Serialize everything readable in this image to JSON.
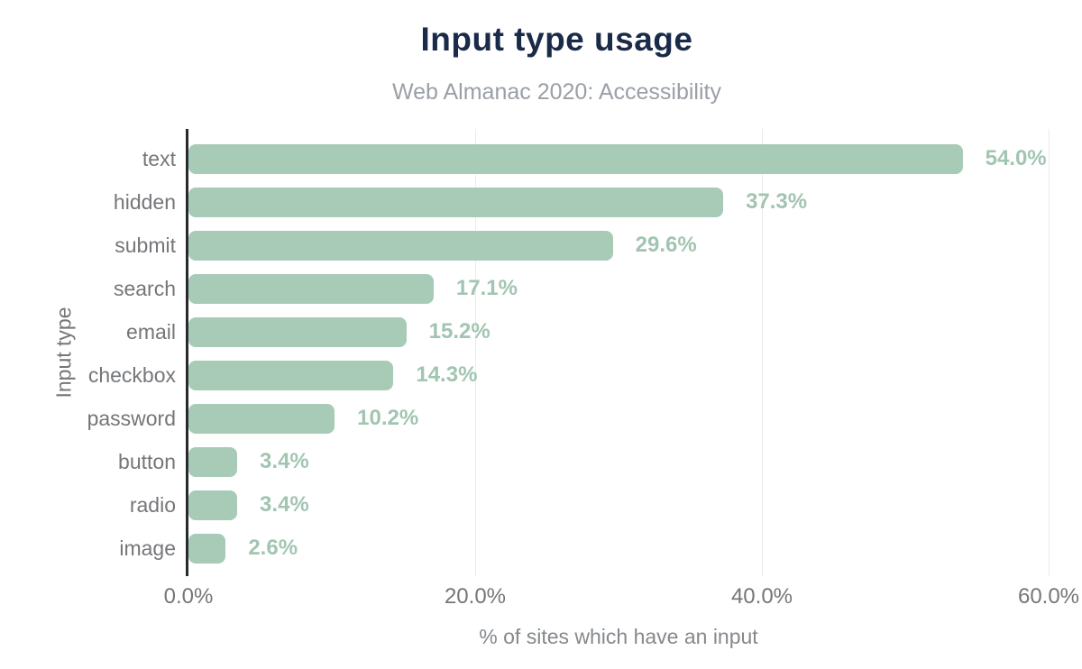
{
  "chart": {
    "title": "Input type usage",
    "subtitle": "Web Almanac 2020: Accessibility",
    "xlabel": "% of sites which have an input",
    "ylabel": "Input type"
  },
  "chart_data": {
    "type": "bar",
    "orientation": "horizontal",
    "title": "Input type usage",
    "subtitle": "Web Almanac 2020: Accessibility",
    "xlabel": "% of sites which have an input",
    "ylabel": "Input type",
    "categories": [
      "text",
      "hidden",
      "submit",
      "search",
      "email",
      "checkbox",
      "password",
      "button",
      "radio",
      "image"
    ],
    "values": [
      54.0,
      37.3,
      29.6,
      17.1,
      15.2,
      14.3,
      10.2,
      3.4,
      3.4,
      2.6
    ],
    "value_labels": [
      "54.0%",
      "37.3%",
      "29.6%",
      "17.1%",
      "15.2%",
      "14.3%",
      "10.2%",
      "3.4%",
      "3.4%",
      "2.6%"
    ],
    "xlim": [
      0,
      60
    ],
    "xtick_values": [
      0,
      20,
      40,
      60
    ],
    "xtick_labels": [
      "0.0%",
      "20.0%",
      "40.0%",
      "60.0%"
    ],
    "grid": true,
    "legend": false,
    "colors": {
      "bar": "#a8cbb7",
      "value_label": "#a1c5b1",
      "title": "#1a2b49",
      "subtitle": "#9aa0a6",
      "axis_text": "#747679",
      "axis_line": "#27292c",
      "gridline": "#ebebeb",
      "background": "#ffffff"
    }
  }
}
